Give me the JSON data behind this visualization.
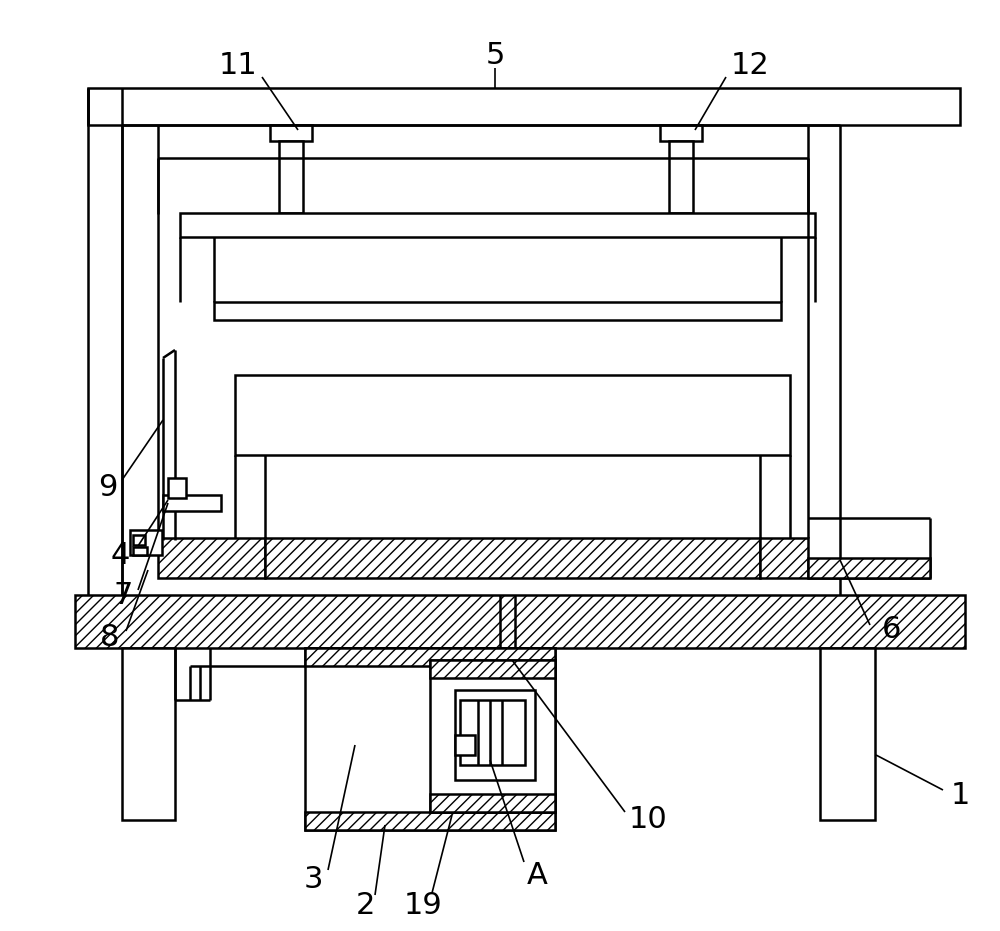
{
  "bg_color": "#ffffff",
  "lw": 1.8,
  "lw_thin": 1.2,
  "label_fontsize": 22
}
